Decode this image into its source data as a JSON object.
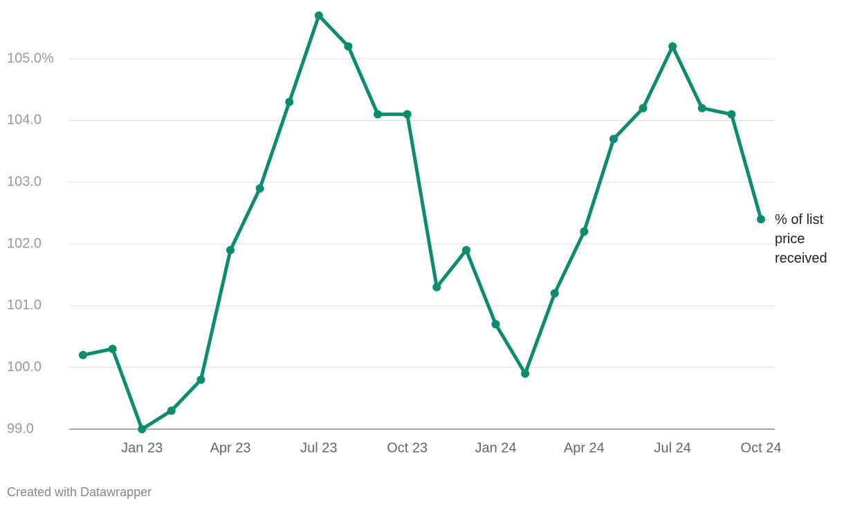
{
  "chart_data": {
    "type": "line",
    "categories": [
      null,
      null,
      "Jan 23",
      null,
      null,
      "Apr 23",
      null,
      null,
      "Jul 23",
      null,
      null,
      "Oct 23",
      null,
      null,
      "Jan 24",
      null,
      null,
      "Apr 24",
      null,
      null,
      "Jul 24",
      null,
      null,
      "Oct 24"
    ],
    "series": [
      {
        "name": "% of list price received",
        "color": "#0b8c6f",
        "values": [
          100.2,
          100.3,
          99.0,
          99.3,
          99.8,
          101.9,
          102.9,
          104.3,
          105.7,
          105.2,
          104.1,
          104.1,
          101.3,
          101.9,
          100.7,
          99.9,
          101.2,
          102.2,
          103.7,
          104.2,
          105.2,
          104.2,
          104.1,
          102.4
        ]
      }
    ],
    "ylim": [
      99,
      105.8
    ],
    "yticks": [
      {
        "value": 99,
        "label": "99.0"
      },
      {
        "value": 100,
        "label": "100.0"
      },
      {
        "value": 101,
        "label": "101.0"
      },
      {
        "value": 102,
        "label": "102.0"
      },
      {
        "value": 103,
        "label": "103.0"
      },
      {
        "value": 104,
        "label": "104.0"
      },
      {
        "value": 105,
        "label": "105.0%"
      }
    ],
    "grid": true,
    "footer": "Created with Datawrapper"
  }
}
